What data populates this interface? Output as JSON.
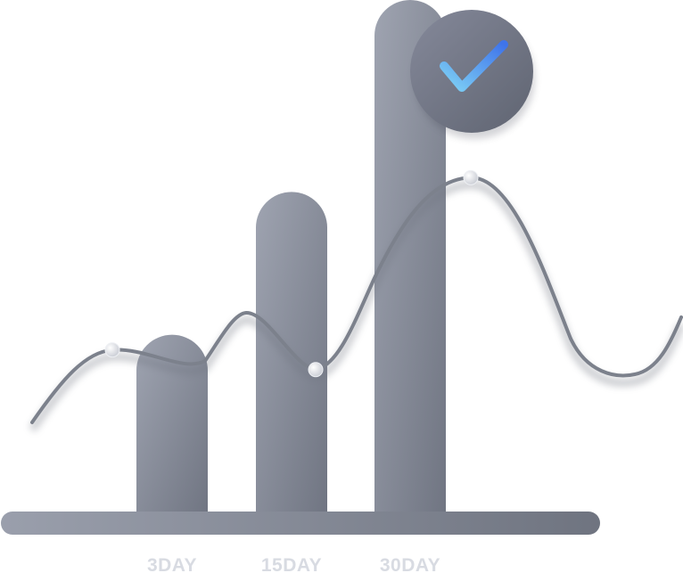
{
  "chart_data": {
    "type": "bar",
    "categories": [
      "3DAY",
      "15DAY",
      "30DAY"
    ],
    "values": [
      200,
      360,
      575
    ],
    "title": "",
    "xlabel": "",
    "ylabel": "",
    "ylim": [
      0,
      575
    ],
    "grid": false,
    "legend": "none",
    "trend_line": {
      "points": [
        {
          "x": "3DAY",
          "y": 183
        },
        {
          "x": "15DAY",
          "y": 161
        },
        {
          "x": "30DAY",
          "y": 376
        }
      ]
    },
    "badge": {
      "icon": "check-icon",
      "position_category": "30DAY"
    }
  },
  "colors": {
    "bar_light": "#9fa4b1",
    "bar_dark": "#707582",
    "line": "#7c818c",
    "axis_light": "#9a9fac",
    "axis_dark": "#6f7480",
    "label": "#d8dbe2",
    "check_light": "#7fd2f5",
    "check_dark": "#3f74ea"
  }
}
